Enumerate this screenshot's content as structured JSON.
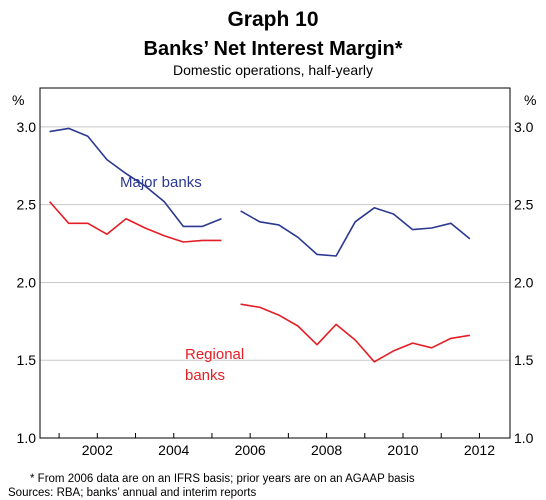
{
  "chart_data": {
    "type": "line",
    "title": "Graph 10",
    "subtitle": "Banks’ Net Interest Margin*",
    "subsubtitle": "Domestic operations, half-yearly",
    "ylabel_left": "%",
    "ylabel_right": "%",
    "ylim": [
      1.0,
      3.25
    ],
    "yticks": [
      "1.0",
      "1.5",
      "2.0",
      "2.5",
      "3.0"
    ],
    "xlim": [
      2000.5,
      2012.8
    ],
    "xticks": [
      "2002",
      "2004",
      "2006",
      "2008",
      "2010",
      "2012"
    ],
    "grid": true,
    "series": [
      {
        "name": "Major banks",
        "color": "#2b3990",
        "segments": [
          {
            "x": [
              2000.75,
              2001.25,
              2001.75,
              2002.25,
              2002.75,
              2003.25,
              2003.75,
              2004.25,
              2004.75,
              2005.25
            ],
            "y": [
              2.97,
              2.99,
              2.94,
              2.79,
              2.7,
              2.62,
              2.52,
              2.36,
              2.36,
              2.41
            ]
          },
          {
            "x": [
              2005.75,
              2006.25,
              2006.75,
              2007.25,
              2007.75,
              2008.25,
              2008.75,
              2009.25,
              2009.75,
              2010.25,
              2010.75,
              2011.25,
              2011.75
            ],
            "y": [
              2.46,
              2.39,
              2.37,
              2.29,
              2.18,
              2.17,
              2.39,
              2.48,
              2.44,
              2.34,
              2.35,
              2.38,
              2.28
            ]
          }
        ]
      },
      {
        "name": "Regional banks",
        "color": "#e31e25",
        "segments": [
          {
            "x": [
              2000.75,
              2001.25,
              2001.75,
              2002.25,
              2002.75,
              2003.25,
              2003.75,
              2004.25,
              2004.75,
              2005.25
            ],
            "y": [
              2.52,
              2.38,
              2.38,
              2.31,
              2.41,
              2.35,
              2.3,
              2.26,
              2.27,
              2.27
            ]
          },
          {
            "x": [
              2005.75,
              2006.25,
              2006.75,
              2007.25,
              2007.75,
              2008.25,
              2008.75,
              2009.25,
              2009.75,
              2010.25,
              2010.75,
              2011.25,
              2011.75
            ],
            "y": [
              1.86,
              1.84,
              1.79,
              1.72,
              1.6,
              1.73,
              1.63,
              1.49,
              1.56,
              1.61,
              1.58,
              1.64,
              1.66
            ]
          }
        ]
      }
    ],
    "annotations": {
      "major": "Major banks",
      "regional_line1": "Regional",
      "regional_line2": "banks"
    },
    "footnote": "*    From 2006 data are on an IFRS basis; prior years are on an AGAAP basis",
    "sources": "Sources: RBA; banks’ annual and interim reports"
  }
}
